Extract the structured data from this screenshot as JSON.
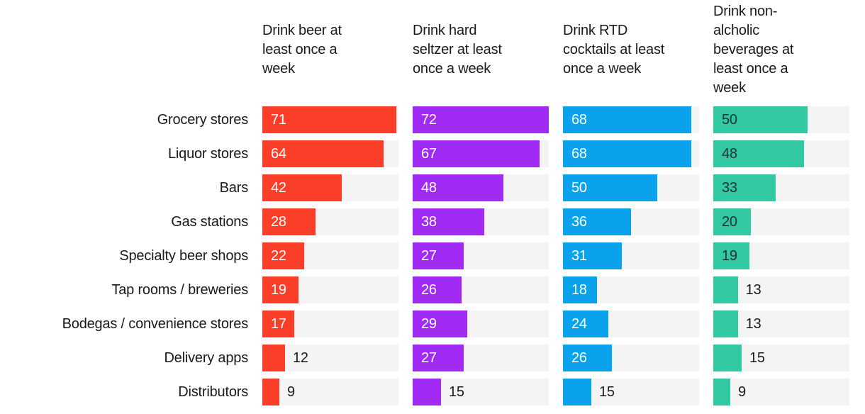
{
  "chart_data": {
    "type": "bar",
    "orientation": "horizontal",
    "title": "",
    "xlabel": "",
    "ylabel": "",
    "xlim": [
      0,
      72
    ],
    "grid": false,
    "legend_position": "column-headers-top",
    "track_color": "#f4f4f4",
    "outside_label_color": "#1a1a1a",
    "label_inside_min": 17,
    "categories": [
      "Grocery stores",
      "Liquor stores",
      "Bars",
      "Gas stations",
      "Specialty beer shops",
      "Tap rooms / breweries",
      "Bodegas / convenience stores",
      "Delivery apps",
      "Distributors"
    ],
    "series": [
      {
        "name": "Drink beer at\nleast once a\nweek",
        "color": "#fa3e28",
        "label_color": "#ffffff",
        "values": [
          71,
          64,
          42,
          28,
          22,
          19,
          17,
          12,
          9
        ]
      },
      {
        "name": "Drink hard\nseltzer at least\nonce a week",
        "color": "#a22bf4",
        "label_color": "#ffffff",
        "values": [
          72,
          67,
          48,
          38,
          27,
          26,
          29,
          27,
          15
        ]
      },
      {
        "name": "Drink RTD\ncocktails at least\nonce a week",
        "color": "#0aa2ea",
        "label_color": "#ffffff",
        "values": [
          68,
          68,
          50,
          36,
          31,
          18,
          24,
          26,
          15
        ]
      },
      {
        "name": "Drink non-\nalcholic\nbeverages at\nleast once a\nweek",
        "color": "#32c9a2",
        "label_color": "#243038",
        "values": [
          50,
          48,
          33,
          20,
          19,
          13,
          13,
          15,
          9
        ]
      }
    ]
  }
}
